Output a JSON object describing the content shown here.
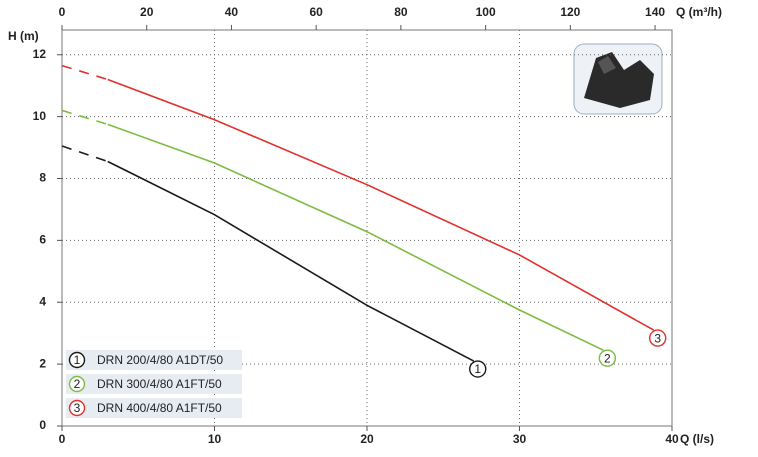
{
  "chart_data": {
    "type": "line",
    "y_label": "H (m)",
    "x_label": "Q (l/s)",
    "x2_label": "Q (m³/h)",
    "xlim": [
      0,
      40
    ],
    "xticks": [
      0,
      10,
      20,
      30,
      40
    ],
    "x2lim": [
      0,
      144
    ],
    "x2ticks": [
      0,
      20,
      40,
      60,
      80,
      100,
      120,
      140
    ],
    "ylim": [
      0,
      12.8
    ],
    "yticks": [
      0,
      2,
      4,
      6,
      8,
      10,
      12
    ],
    "grid": true,
    "legend": "lower left",
    "series": [
      {
        "name": "DRN 200/4/80 A1DT/50",
        "marker": "1",
        "color": "#1a1a1a",
        "x": [
          0,
          3,
          10,
          20,
          27
        ],
        "values": [
          9.05,
          8.55,
          6.83,
          3.9,
          2.1
        ]
      },
      {
        "name": "DRN 300/4/80 A1FT/50",
        "marker": "2",
        "color": "#7dbb42",
        "x": [
          0,
          3,
          10,
          20,
          30,
          35.5
        ],
        "values": [
          10.2,
          9.75,
          8.5,
          6.28,
          3.75,
          2.45
        ]
      },
      {
        "name": "DRN 400/4/80 A1FT/50",
        "marker": "3",
        "color": "#e0312b",
        "x": [
          0,
          3,
          10,
          20,
          30,
          38.8
        ],
        "values": [
          11.65,
          11.2,
          9.9,
          7.8,
          5.53,
          3.1
        ]
      }
    ]
  }
}
